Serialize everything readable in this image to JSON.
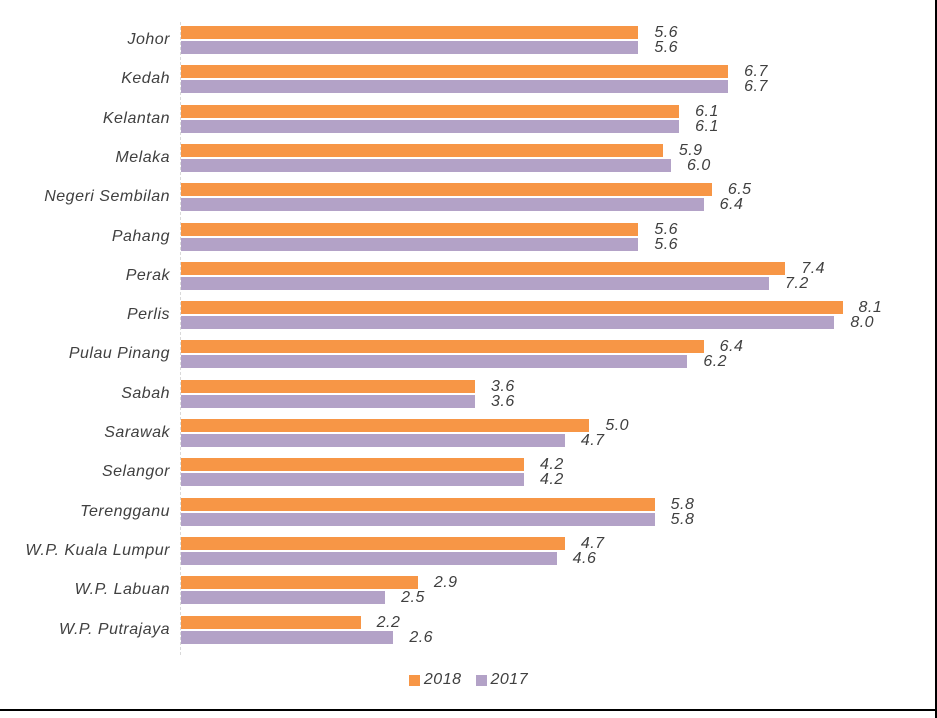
{
  "chart_data": {
    "type": "bar",
    "orientation": "horizontal",
    "title": "",
    "xlabel": "",
    "ylabel": "",
    "xlim": [
      0,
      9
    ],
    "grid": false,
    "legend_position": "bottom",
    "axis_line_color": "#d9d9d9",
    "text_color": "#404040",
    "value_label_decimals": 1,
    "categories": [
      "Johor",
      "Kedah",
      "Kelantan",
      "Melaka",
      "Negeri Sembilan",
      "Pahang",
      "Perak",
      "Perlis",
      "Pulau Pinang",
      "Sabah",
      "Sarawak",
      "Selangor",
      "Terengganu",
      "W.P. Kuala Lumpur",
      "W.P. Labuan",
      "W.P. Putrajaya"
    ],
    "series": [
      {
        "name": "2018",
        "color": "#F79646",
        "values": [
          5.6,
          6.7,
          6.1,
          5.9,
          6.5,
          5.6,
          7.4,
          8.1,
          6.4,
          3.6,
          5.0,
          4.2,
          5.8,
          4.7,
          2.9,
          2.2
        ]
      },
      {
        "name": "2017",
        "color": "#B3A2C7",
        "values": [
          5.6,
          6.7,
          6.1,
          6.0,
          6.4,
          5.6,
          7.2,
          8.0,
          6.2,
          3.6,
          4.7,
          4.2,
          5.8,
          4.6,
          2.5,
          2.6
        ]
      }
    ]
  }
}
